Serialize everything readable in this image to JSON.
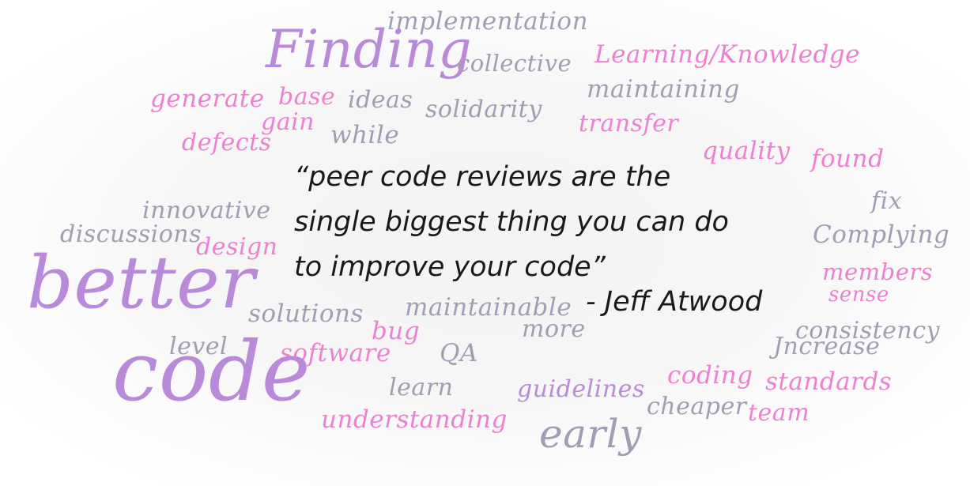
{
  "words": {
    "implementation": "implementation",
    "finding": "Finding",
    "collective": "collective",
    "learning_knowledge": "Learning/Knowledge",
    "generate": "generate",
    "base": "base",
    "ideas": "ideas",
    "solidarity": "solidarity",
    "maintaining": "maintaining",
    "gain": "gain",
    "defects": "defects",
    "while": "while",
    "transfer": "transfer",
    "quality": "quality",
    "found": "found",
    "innovative": "innovative",
    "fix": "fix",
    "discussions": "discussions",
    "design": "design",
    "complying": "Complying",
    "better": "better",
    "members": "members",
    "sense": "sense",
    "solutions": "solutions",
    "maintainable": "maintainable",
    "bug": "bug",
    "more": "more",
    "consistency": "consistency",
    "level": "level",
    "software": "software",
    "qa": "QA",
    "increase": "Jncrease",
    "code": "code",
    "learn": "learn",
    "guidelines": "guidelines",
    "coding": "coding",
    "standards": "standards",
    "cheaper": "cheaper",
    "team": "team",
    "understanding": "understanding",
    "early": "early"
  },
  "quote": {
    "line1": "“peer code reviews are the",
    "line2": "single biggest thing you can do",
    "line3": "to improve your code”",
    "author": "- Jeff Atwood"
  },
  "colors": {
    "grey": "#9f9fb4",
    "pink": "#ef7fd0",
    "violet": "#b98ad9",
    "text": "#1a1a1a"
  }
}
